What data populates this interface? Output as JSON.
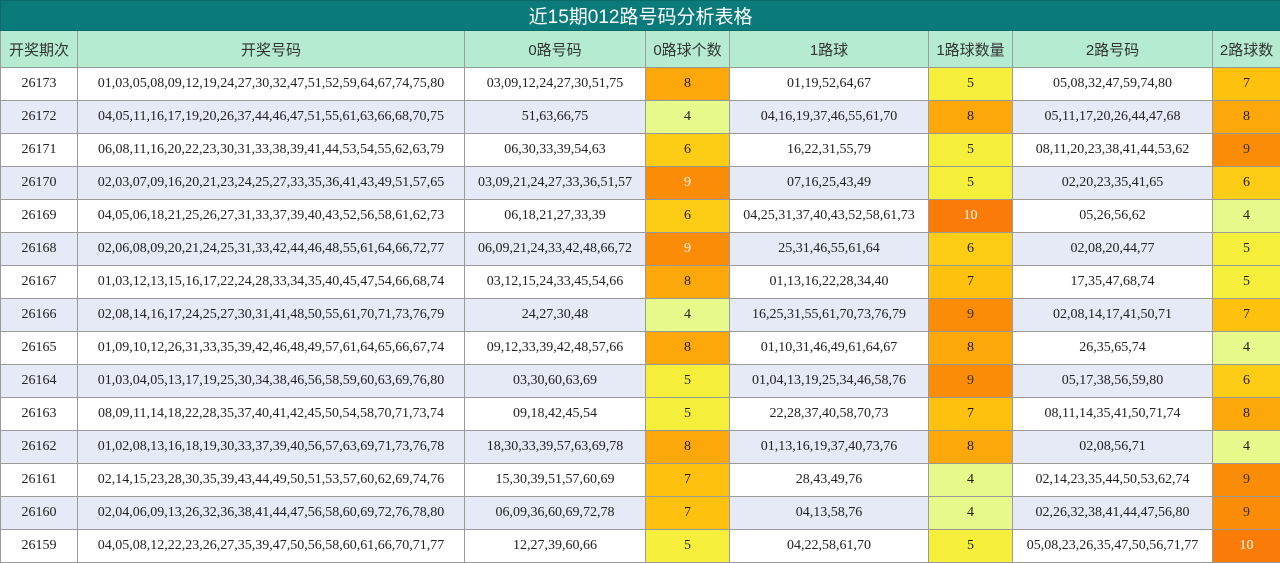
{
  "title": "近15期012路号码分析表格",
  "headers": [
    "开奖期次",
    "开奖号码",
    "0路号码",
    "0路球个数",
    "1路球",
    "1路球数量",
    "2路号码",
    "2路球数"
  ],
  "rows": [
    {
      "period": "26173",
      "numbers": "01,03,05,08,09,12,19,24,27,30,32,47,51,52,59,64,67,74,75,80",
      "r0": "03,09,12,24,27,30,51,75",
      "c0": "8",
      "r1": "01,19,52,64,67",
      "c1": "5",
      "r2": "05,08,32,47,59,74,80",
      "c2": "7"
    },
    {
      "period": "26172",
      "numbers": "04,05,11,16,17,19,20,26,37,44,46,47,51,55,61,63,66,68,70,75",
      "r0": "51,63,66,75",
      "c0": "4",
      "r1": "04,16,19,37,46,55,61,70",
      "c1": "8",
      "r2": "05,11,17,20,26,44,47,68",
      "c2": "8"
    },
    {
      "period": "26171",
      "numbers": "06,08,11,16,20,22,23,30,31,33,38,39,41,44,53,54,55,62,63,79",
      "r0": "06,30,33,39,54,63",
      "c0": "6",
      "r1": "16,22,31,55,79",
      "c1": "5",
      "r2": "08,11,20,23,38,41,44,53,62",
      "c2": "9"
    },
    {
      "period": "26170",
      "numbers": "02,03,07,09,16,20,21,23,24,25,27,33,35,36,41,43,49,51,57,65",
      "r0": "03,09,21,24,27,33,36,51,57",
      "c0": "9",
      "r1": "07,16,25,43,49",
      "c1": "5",
      "r2": "02,20,23,35,41,65",
      "c2": "6"
    },
    {
      "period": "26169",
      "numbers": "04,05,06,18,21,25,26,27,31,33,37,39,40,43,52,56,58,61,62,73",
      "r0": "06,18,21,27,33,39",
      "c0": "6",
      "r1": "04,25,31,37,40,43,52,58,61,73",
      "c1": "10",
      "r2": "05,26,56,62",
      "c2": "4"
    },
    {
      "period": "26168",
      "numbers": "02,06,08,09,20,21,24,25,31,33,42,44,46,48,55,61,64,66,72,77",
      "r0": "06,09,21,24,33,42,48,66,72",
      "c0": "9",
      "r1": "25,31,46,55,61,64",
      "c1": "6",
      "r2": "02,08,20,44,77",
      "c2": "5"
    },
    {
      "period": "26167",
      "numbers": "01,03,12,13,15,16,17,22,24,28,33,34,35,40,45,47,54,66,68,74",
      "r0": "03,12,15,24,33,45,54,66",
      "c0": "8",
      "r1": "01,13,16,22,28,34,40",
      "c1": "7",
      "r2": "17,35,47,68,74",
      "c2": "5"
    },
    {
      "period": "26166",
      "numbers": "02,08,14,16,17,24,25,27,30,31,41,48,50,55,61,70,71,73,76,79",
      "r0": "24,27,30,48",
      "c0": "4",
      "r1": "16,25,31,55,61,70,73,76,79",
      "c1": "9",
      "r2": "02,08,14,17,41,50,71",
      "c2": "7"
    },
    {
      "period": "26165",
      "numbers": "01,09,10,12,26,31,33,35,39,42,46,48,49,57,61,64,65,66,67,74",
      "r0": "09,12,33,39,42,48,57,66",
      "c0": "8",
      "r1": "01,10,31,46,49,61,64,67",
      "c1": "8",
      "r2": "26,35,65,74",
      "c2": "4"
    },
    {
      "period": "26164",
      "numbers": "01,03,04,05,13,17,19,25,30,34,38,46,56,58,59,60,63,69,76,80",
      "r0": "03,30,60,63,69",
      "c0": "5",
      "r1": "01,04,13,19,25,34,46,58,76",
      "c1": "9",
      "r2": "05,17,38,56,59,80",
      "c2": "6"
    },
    {
      "period": "26163",
      "numbers": "08,09,11,14,18,22,28,35,37,40,41,42,45,50,54,58,70,71,73,74",
      "r0": "09,18,42,45,54",
      "c0": "5",
      "r1": "22,28,37,40,58,70,73",
      "c1": "7",
      "r2": "08,11,14,35,41,50,71,74",
      "c2": "8"
    },
    {
      "period": "26162",
      "numbers": "01,02,08,13,16,18,19,30,33,37,39,40,56,57,63,69,71,73,76,78",
      "r0": "18,30,33,39,57,63,69,78",
      "c0": "8",
      "r1": "01,13,16,19,37,40,73,76",
      "c1": "8",
      "r2": "02,08,56,71",
      "c2": "4"
    },
    {
      "period": "26161",
      "numbers": "02,14,15,23,28,30,35,39,43,44,49,50,51,53,57,60,62,69,74,76",
      "r0": "15,30,39,51,57,60,69",
      "c0": "7",
      "r1": "28,43,49,76",
      "c1": "4",
      "r2": "02,14,23,35,44,50,53,62,74",
      "c2": "9"
    },
    {
      "period": "26160",
      "numbers": "02,04,06,09,13,26,32,36,38,41,44,47,56,58,60,69,72,76,78,80",
      "r0": "06,09,36,60,69,72,78",
      "c0": "7",
      "r1": "04,13,58,76",
      "c1": "4",
      "r2": "02,26,32,38,41,44,47,56,80",
      "c2": "9"
    },
    {
      "period": "26159",
      "numbers": "04,05,08,12,22,23,26,27,35,39,47,50,56,58,60,61,66,70,71,77",
      "r0": "12,27,39,60,66",
      "c0": "5",
      "r1": "04,22,58,61,70",
      "c1": "5",
      "r2": "05,08,23,26,35,47,50,56,71,77",
      "c2": "10"
    }
  ]
}
